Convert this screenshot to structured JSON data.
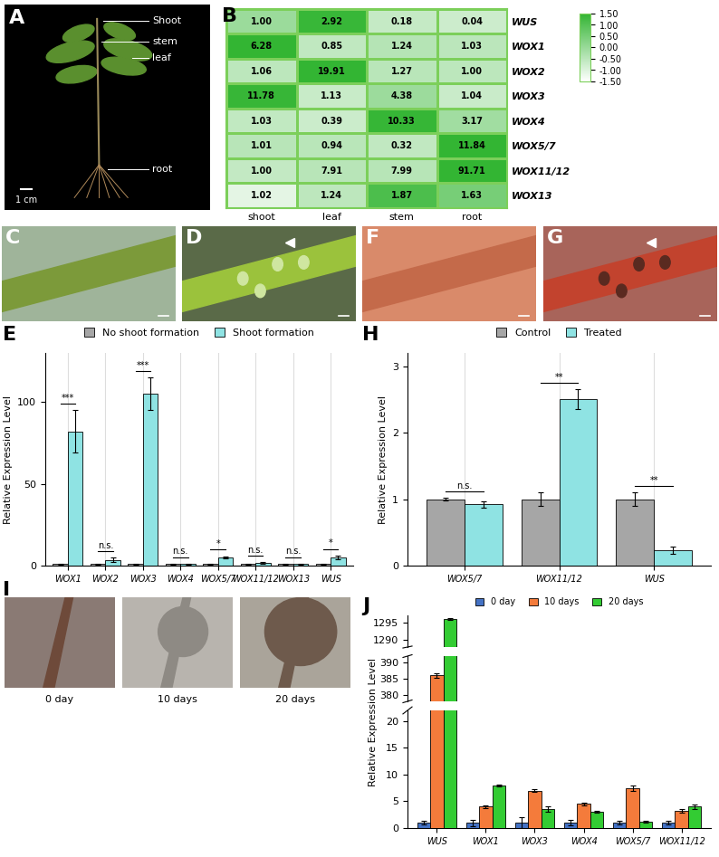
{
  "images": [
    {
      "panel": "A",
      "labels": [
        "Shoot",
        "stem",
        "leaf",
        "root"
      ],
      "scale_bar": "1 cm"
    },
    {
      "panel": "C"
    },
    {
      "panel": "D"
    },
    {
      "panel": "F"
    },
    {
      "panel": "G"
    },
    {
      "panel": "I",
      "captions": [
        "0 day",
        "10 days",
        "20 days"
      ]
    }
  ],
  "chart_data": [
    {
      "panel": "B",
      "type": "heatmap",
      "categories": [
        "shoot",
        "leaf",
        "stem",
        "root"
      ],
      "rows": [
        "WUS",
        "WOX1",
        "WOX2",
        "WOX3",
        "WOX4",
        "WOX5/7",
        "WOX11/12",
        "WOX13"
      ],
      "values": [
        [
          1.0,
          2.92,
          0.18,
          0.04
        ],
        [
          6.28,
          0.85,
          1.24,
          1.03
        ],
        [
          1.06,
          19.91,
          1.27,
          1.0
        ],
        [
          11.78,
          1.13,
          4.38,
          1.04
        ],
        [
          1.03,
          0.39,
          10.33,
          3.17
        ],
        [
          1.01,
          0.94,
          0.32,
          11.84
        ],
        [
          1.0,
          7.91,
          7.99,
          91.71
        ],
        [
          1.02,
          1.24,
          1.87,
          1.63
        ]
      ],
      "value_labels": [
        [
          "1.00",
          "2.92",
          "0.18",
          "0.04"
        ],
        [
          "6.28",
          "0.85",
          "1.24",
          "1.03"
        ],
        [
          "1.06",
          "19.91",
          "1.27",
          "1.00"
        ],
        [
          "11.78",
          "1.13",
          "4.38",
          "1.04"
        ],
        [
          "1.03",
          "0.39",
          "10.33",
          "3.17"
        ],
        [
          "1.01",
          "0.94",
          "0.32",
          "11.84"
        ],
        [
          "1.00",
          "7.91",
          "7.99",
          "91.71"
        ],
        [
          "1.02",
          "1.24",
          "1.87",
          "1.63"
        ]
      ],
      "cells": [
        [
          -0.03,
          1.42,
          -0.64,
          -0.75
        ],
        [
          1.5,
          -0.57,
          -0.42,
          -0.5
        ],
        [
          -0.51,
          1.5,
          -0.48,
          -0.51
        ],
        [
          1.43,
          -0.68,
          -0.04,
          -0.7
        ],
        [
          -0.59,
          -0.73,
          1.45,
          -0.12
        ],
        [
          -0.45,
          -0.47,
          -0.58,
          1.5
        ],
        [
          -0.61,
          -0.45,
          -0.44,
          1.5
        ],
        [
          -1.1,
          -0.52,
          1.13,
          0.5
        ]
      ],
      "color": "#33b533",
      "colorbar_range": [
        -1.5,
        1.5
      ],
      "colorbar_ticks": [
        {
          "value": 1.5,
          "label": "1.50"
        },
        {
          "value": 1.0,
          "label": "1.00"
        },
        {
          "value": 0.5,
          "label": "0.50"
        },
        {
          "value": 0.0,
          "label": "0.00"
        },
        {
          "value": -0.5,
          "label": "-0.50"
        },
        {
          "value": -1.0,
          "label": "-1.00"
        },
        {
          "value": -1.5,
          "label": "-1.50"
        }
      ]
    },
    {
      "panel": "E",
      "type": "bar",
      "categories": [
        "WOX1",
        "WOX2",
        "WOX3",
        "WOX4",
        "WOX5/7",
        "WOX11/12",
        "WOX13",
        "WUS"
      ],
      "ylabel": "Relative Expression Level",
      "ylim": [
        0,
        130
      ],
      "yticks": [
        0,
        50,
        100
      ],
      "grid": "x",
      "legend": "top",
      "series": [
        {
          "name": "No shoot formation",
          "color": "#a6a6a6",
          "values": [
            1,
            1,
            1,
            1,
            1,
            1,
            1,
            1
          ],
          "errors": [
            0.3,
            0.3,
            0.3,
            0.3,
            0.3,
            0.3,
            0.3,
            0.3
          ]
        },
        {
          "name": "Shoot formation",
          "color": "#8fe3e3",
          "values": [
            82,
            3.5,
            105,
            1,
            5,
            1.5,
            1,
            5
          ],
          "errors": [
            13,
            1.5,
            10,
            0.3,
            0.8,
            0.6,
            0.3,
            1.2
          ]
        }
      ],
      "annotations": [
        "***",
        "n.s.",
        "***",
        "n.s.",
        "*",
        "n.s.",
        "n.s.",
        "*"
      ]
    },
    {
      "panel": "H",
      "type": "bar",
      "categories": [
        "WOX5/7",
        "WOX11/12",
        "WUS"
      ],
      "ylabel": "Relative Expression Level",
      "ylim": [
        0,
        3.2
      ],
      "yticks": [
        0,
        1,
        2,
        3
      ],
      "grid": "x",
      "legend": "top",
      "series": [
        {
          "name": "Control",
          "color": "#a6a6a6",
          "values": [
            1.0,
            1.0,
            1.0
          ],
          "errors": [
            0.02,
            0.1,
            0.1
          ]
        },
        {
          "name": "Treated",
          "color": "#8fe3e3",
          "values": [
            0.92,
            2.5,
            0.23
          ],
          "errors": [
            0.05,
            0.15,
            0.05
          ]
        }
      ],
      "annotations": [
        "n.s.",
        "**",
        "**"
      ]
    },
    {
      "panel": "J",
      "type": "bar",
      "categories": [
        "WUS",
        "WOX1",
        "WOX3",
        "WOX4",
        "WOX5/7",
        "WOX11/12"
      ],
      "ylabel": "Relative Expression Level",
      "grid": false,
      "legend": "top",
      "series": [
        {
          "name": "0 day",
          "color": "#4472c4",
          "values": [
            1,
            1,
            1,
            1,
            1,
            1
          ],
          "errors": [
            0.3,
            0.6,
            1.0,
            0.5,
            0.4,
            0.3
          ]
        },
        {
          "name": "10 days",
          "color": "#f47b3b",
          "values": [
            386,
            4,
            7,
            4.5,
            7.5,
            3.2
          ],
          "errors": [
            0.6,
            0.3,
            0.3,
            0.3,
            0.5,
            0.4
          ]
        },
        {
          "name": "20 days",
          "color": "#33cc33",
          "values": [
            1296,
            8,
            3.5,
            3,
            1.2,
            4
          ],
          "errors": [
            0.2,
            0.2,
            0.5,
            0.2,
            0.2,
            0.4
          ]
        }
      ],
      "axis_segments": [
        {
          "ylim": [
            1288,
            1297
          ],
          "yticks": [
            1290,
            1295
          ]
        },
        {
          "ylim": [
            378,
            392
          ],
          "yticks": [
            380,
            385,
            390
          ]
        },
        {
          "ylim": [
            0,
            22
          ],
          "yticks": [
            0,
            5,
            10,
            15,
            20
          ]
        }
      ]
    }
  ]
}
